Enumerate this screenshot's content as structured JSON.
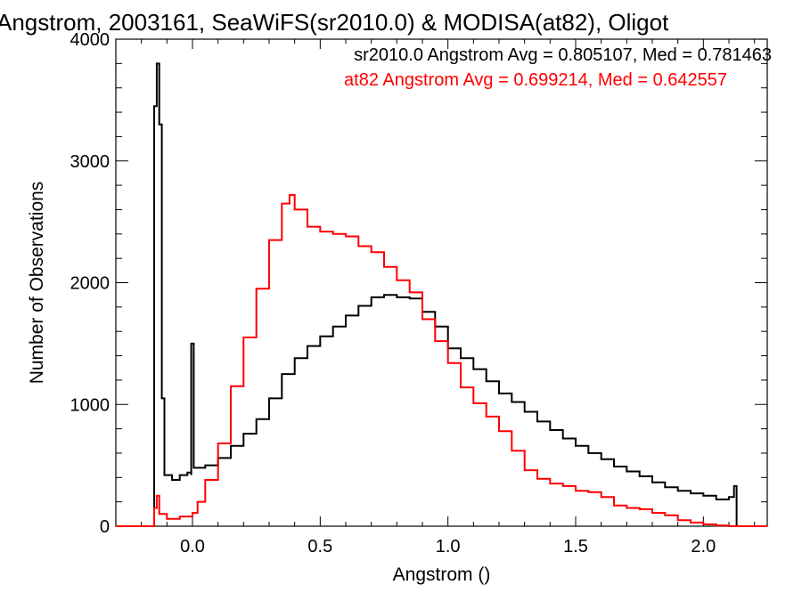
{
  "chart_data": {
    "type": "histogram",
    "title": "Angstrom, 2003161, SeaWiFS(sr2010.0) & MODISA(at82), Oligot",
    "xlabel": "Angstrom ()",
    "ylabel": "Number of Observations",
    "xlim": [
      -0.3,
      2.25
    ],
    "ylim": [
      0,
      4000
    ],
    "x_ticks": [
      "0.0",
      "0.5",
      "1.0",
      "1.5",
      "2.0"
    ],
    "y_ticks": [
      "0",
      "1000",
      "2000",
      "3000",
      "4000"
    ],
    "grid": false,
    "annotations": [
      {
        "text": "sr2010.0 Angstrom Avg = 0.805107, Med = 0.781463",
        "color": "#000000"
      },
      {
        "text": "at82 Angstrom Avg = 0.699214, Med = 0.642557",
        "color": "#ff0000"
      }
    ],
    "series": [
      {
        "color": "#000000",
        "points": [
          [
            -0.155,
            0
          ],
          [
            -0.15,
            0
          ],
          [
            -0.15,
            3450
          ],
          [
            -0.14,
            3450
          ],
          [
            -0.14,
            3800
          ],
          [
            -0.13,
            3800
          ],
          [
            -0.13,
            3300
          ],
          [
            -0.12,
            3300
          ],
          [
            -0.12,
            1050
          ],
          [
            -0.11,
            1050
          ],
          [
            -0.11,
            420
          ],
          [
            -0.1,
            420
          ],
          [
            -0.08,
            380
          ],
          [
            -0.05,
            420
          ],
          [
            -0.02,
            440
          ],
          [
            -0.005,
            420
          ],
          [
            -0.005,
            1500
          ],
          [
            0.005,
            1500
          ],
          [
            0.005,
            480
          ],
          [
            0.05,
            500
          ],
          [
            0.1,
            560
          ],
          [
            0.15,
            660
          ],
          [
            0.2,
            760
          ],
          [
            0.25,
            880
          ],
          [
            0.3,
            1050
          ],
          [
            0.35,
            1250
          ],
          [
            0.4,
            1380
          ],
          [
            0.45,
            1480
          ],
          [
            0.5,
            1560
          ],
          [
            0.55,
            1640
          ],
          [
            0.6,
            1730
          ],
          [
            0.65,
            1810
          ],
          [
            0.7,
            1880
          ],
          [
            0.75,
            1900
          ],
          [
            0.8,
            1880
          ],
          [
            0.85,
            1870
          ],
          [
            0.9,
            1760
          ],
          [
            0.95,
            1640
          ],
          [
            1.0,
            1460
          ],
          [
            1.05,
            1380
          ],
          [
            1.1,
            1290
          ],
          [
            1.15,
            1190
          ],
          [
            1.2,
            1090
          ],
          [
            1.25,
            1020
          ],
          [
            1.3,
            940
          ],
          [
            1.35,
            860
          ],
          [
            1.4,
            790
          ],
          [
            1.45,
            720
          ],
          [
            1.5,
            660
          ],
          [
            1.55,
            600
          ],
          [
            1.6,
            550
          ],
          [
            1.65,
            490
          ],
          [
            1.7,
            450
          ],
          [
            1.75,
            410
          ],
          [
            1.8,
            360
          ],
          [
            1.85,
            320
          ],
          [
            1.9,
            290
          ],
          [
            1.95,
            270
          ],
          [
            2.0,
            250
          ],
          [
            2.05,
            220
          ],
          [
            2.1,
            240
          ],
          [
            2.12,
            330
          ],
          [
            2.13,
            330
          ],
          [
            2.13,
            0
          ],
          [
            2.14,
            0
          ]
        ]
      },
      {
        "color": "#ff0000",
        "points": [
          [
            -0.3,
            0
          ],
          [
            -0.15,
            0
          ],
          [
            -0.15,
            150
          ],
          [
            -0.14,
            250
          ],
          [
            -0.13,
            100
          ],
          [
            -0.1,
            60
          ],
          [
            -0.05,
            80
          ],
          [
            0.0,
            110
          ],
          [
            0.02,
            200
          ],
          [
            0.05,
            380
          ],
          [
            0.1,
            680
          ],
          [
            0.15,
            1150
          ],
          [
            0.2,
            1550
          ],
          [
            0.25,
            1950
          ],
          [
            0.3,
            2350
          ],
          [
            0.35,
            2650
          ],
          [
            0.38,
            2720
          ],
          [
            0.4,
            2600
          ],
          [
            0.45,
            2460
          ],
          [
            0.5,
            2420
          ],
          [
            0.55,
            2400
          ],
          [
            0.6,
            2380
          ],
          [
            0.65,
            2300
          ],
          [
            0.7,
            2250
          ],
          [
            0.75,
            2130
          ],
          [
            0.8,
            2020
          ],
          [
            0.85,
            1920
          ],
          [
            0.9,
            1700
          ],
          [
            0.95,
            1520
          ],
          [
            1.0,
            1340
          ],
          [
            1.05,
            1140
          ],
          [
            1.1,
            1010
          ],
          [
            1.15,
            900
          ],
          [
            1.2,
            780
          ],
          [
            1.25,
            620
          ],
          [
            1.3,
            460
          ],
          [
            1.35,
            390
          ],
          [
            1.4,
            350
          ],
          [
            1.45,
            330
          ],
          [
            1.5,
            290
          ],
          [
            1.55,
            280
          ],
          [
            1.6,
            240
          ],
          [
            1.65,
            170
          ],
          [
            1.7,
            150
          ],
          [
            1.75,
            140
          ],
          [
            1.8,
            110
          ],
          [
            1.85,
            90
          ],
          [
            1.9,
            50
          ],
          [
            1.95,
            30
          ],
          [
            2.0,
            15
          ],
          [
            2.05,
            5
          ],
          [
            2.1,
            0
          ],
          [
            2.25,
            0
          ]
        ]
      }
    ]
  }
}
